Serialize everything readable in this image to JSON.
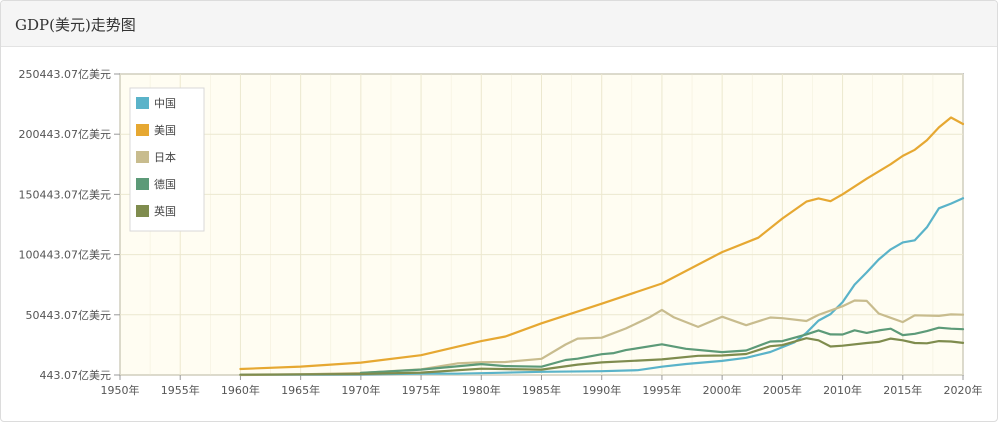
{
  "panel": {
    "title": "GDP(美元)走势图"
  },
  "colors": {
    "plot_bg": "#fffdf2",
    "grid": "#ece8cf",
    "axis": "#999999"
  },
  "chart_data": {
    "type": "line",
    "title": "GDP(美元)走势图",
    "xlabel": "",
    "ylabel": "",
    "xlim": [
      1950,
      2020
    ],
    "ylim": [
      443.07,
      250443.07
    ],
    "x_ticks": [
      1950,
      1955,
      1960,
      1965,
      1970,
      1975,
      1980,
      1985,
      1990,
      1995,
      2000,
      2005,
      2010,
      2015,
      2020
    ],
    "x_tick_labels": [
      "1950年",
      "1955年",
      "1960年",
      "1965年",
      "1970年",
      "1975年",
      "1980年",
      "1985年",
      "1990年",
      "1995年",
      "2000年",
      "2005年",
      "2010年",
      "2015年",
      "2020年"
    ],
    "y_ticks": [
      443.07,
      50443.07,
      100443.07,
      150443.07,
      200443.07,
      250443.07
    ],
    "y_tick_labels": [
      "443.07亿美元",
      "50443.07亿美元",
      "100443.07亿美元",
      "150443.07亿美元",
      "200443.07亿美元",
      "250443.07亿美元"
    ],
    "grid": true,
    "legend_position": "top-left",
    "series": [
      {
        "name": "中国",
        "color": "#5ab3c9",
        "x": [
          1960,
          1965,
          1970,
          1975,
          1978,
          1980,
          1985,
          1990,
          1993,
          1995,
          1997,
          2000,
          2002,
          2004,
          2006,
          2007,
          2008,
          2009,
          2010,
          2011,
          2012,
          2013,
          2014,
          2015,
          2016,
          2017,
          2018,
          2019,
          2020
        ],
        "y": [
          597,
          704,
          926,
          1639,
          1495,
          1911,
          3094,
          3609,
          4447,
          7345,
          9616,
          12113,
          14706,
          19553,
          27521,
          35500,
          45600,
          51000,
          61000,
          75500,
          85700,
          96400,
          104800,
          110600,
          112300,
          123100,
          138900,
          142800,
          147200
        ]
      },
      {
        "name": "美国",
        "color": "#e6a832",
        "x": [
          1960,
          1965,
          1970,
          1975,
          1980,
          1982,
          1985,
          1990,
          1995,
          2000,
          2003,
          2005,
          2007,
          2008,
          2009,
          2010,
          2012,
          2014,
          2015,
          2016,
          2017,
          2018,
          2019,
          2020
        ],
        "y": [
          5433,
          7438,
          10730,
          16848,
          28573,
          32439,
          43389,
          59631,
          76400,
          102500,
          114500,
          130400,
          144500,
          147100,
          144800,
          150500,
          163500,
          175500,
          182400,
          187500,
          195400,
          206100,
          214300,
          208900
        ]
      },
      {
        "name": "日本",
        "color": "#c8bc8e",
        "x": [
          1960,
          1965,
          1970,
          1975,
          1978,
          1980,
          1982,
          1985,
          1987,
          1988,
          1990,
          1992,
          1994,
          1995,
          1996,
          1998,
          2000,
          2002,
          2004,
          2005,
          2007,
          2008,
          2010,
          2011,
          2012,
          2013,
          2015,
          2016,
          2018,
          2019,
          2020
        ],
        "y": [
          443,
          910,
          2126,
          5218,
          10100,
          11050,
          11200,
          13900,
          25800,
          30700,
          31400,
          39100,
          48500,
          54500,
          48300,
          40400,
          48900,
          41800,
          48200,
          47600,
          45300,
          50400,
          57600,
          62300,
          62000,
          51500,
          44400,
          50000,
          49500,
          50800,
          50500
        ]
      },
      {
        "name": "德国",
        "color": "#5c9a78",
        "x": [
          1970,
          1975,
          1980,
          1982,
          1985,
          1987,
          1988,
          1990,
          1991,
          1992,
          1995,
          1997,
          2000,
          2002,
          2004,
          2005,
          2007,
          2008,
          2009,
          2010,
          2011,
          2012,
          2013,
          2014,
          2015,
          2016,
          2017,
          2018,
          2019,
          2020
        ],
        "y": [
          2150,
          4900,
          9500,
          7800,
          7300,
          12900,
          14000,
          17700,
          18600,
          21100,
          25900,
          22200,
          19500,
          20800,
          28300,
          28600,
          34200,
          37500,
          34200,
          34100,
          37600,
          35400,
          37500,
          38900,
          33600,
          34700,
          36900,
          39700,
          38900,
          38500
        ]
      },
      {
        "name": "英国",
        "color": "#7f8c4e",
        "x": [
          1960,
          1965,
          1970,
          1975,
          1980,
          1985,
          1988,
          1990,
          1995,
          1998,
          2000,
          2002,
          2004,
          2005,
          2007,
          2008,
          2009,
          2010,
          2012,
          2013,
          2014,
          2015,
          2016,
          2017,
          2018,
          2019,
          2020
        ],
        "y": [
          730,
          1000,
          1310,
          2410,
          5640,
          4890,
          9100,
          10900,
          13400,
          16400,
          16600,
          17900,
          24400,
          25300,
          31000,
          29300,
          24100,
          24800,
          27000,
          27900,
          30700,
          29300,
          27000,
          26800,
          28600,
          28300,
          27100
        ]
      }
    ]
  }
}
